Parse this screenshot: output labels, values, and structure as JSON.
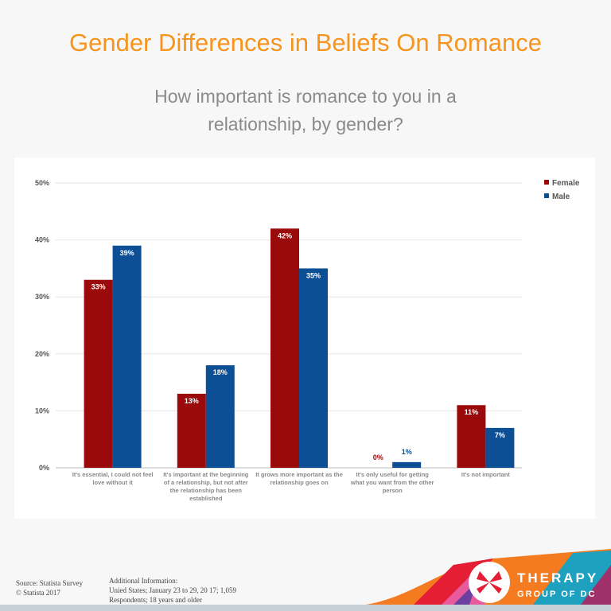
{
  "header": {
    "title": "Gender Differences in Beliefs On Romance",
    "subtitle": "How important is romance to you in a relationship, by gender?"
  },
  "chart_data": {
    "type": "bar",
    "categories": [
      "It's essential, I could not feel love without it",
      "It's important at the beginning of a relationship, but not after the relationship has been established",
      "It grows more important as the relationship goes on",
      "It's only useful for getting what you want from the other person",
      "It's not important"
    ],
    "series": [
      {
        "name": "Female",
        "values": [
          33,
          13,
          42,
          0,
          11
        ],
        "color": "#9b0a0a"
      },
      {
        "name": "Male",
        "values": [
          39,
          18,
          35,
          1,
          7
        ],
        "color": "#0d4f94"
      }
    ],
    "ylim": [
      0,
      50
    ],
    "yticks": [
      "0%",
      "10%",
      "20%",
      "30%",
      "40%",
      "50%"
    ],
    "value_suffix": "%",
    "grid": true,
    "legend": "top-right"
  },
  "footer": {
    "source_line1": "Source: Statista Survey",
    "source_line2": "© Statista 2017",
    "info_line1": "Additional Information:",
    "info_line2": "Unied States; January 23 to 29, 20 17; 1,059",
    "info_line3": "Respondents; 18 years and older"
  },
  "logo": {
    "line1": "THERAPY",
    "line2": "GROUP OF DC"
  }
}
